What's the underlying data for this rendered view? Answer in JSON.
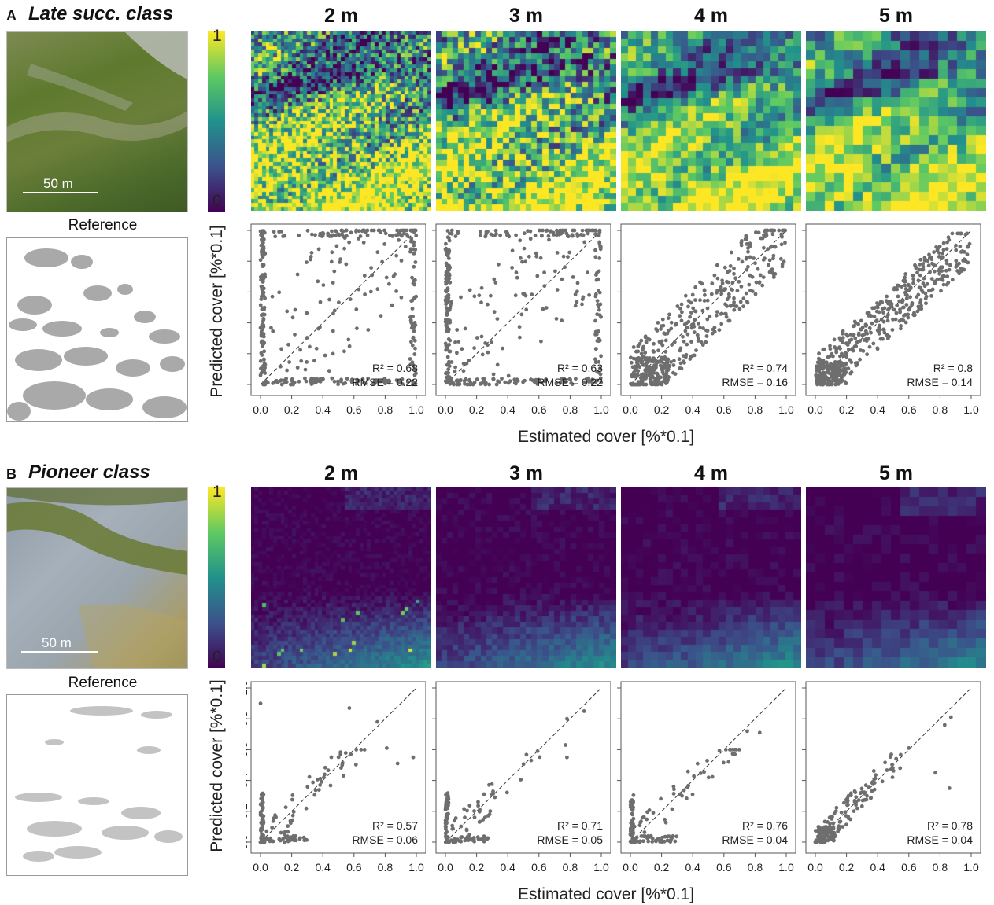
{
  "figure": {
    "panel_a": {
      "letter": "A",
      "class_title": "Late succ. class",
      "scale_label": "50 m",
      "reference_label": "Reference",
      "colorbar": {
        "max_label": "1",
        "min_label": "0"
      },
      "resolutions": [
        "2 m",
        "3 m",
        "4 m",
        "5 m"
      ],
      "ylabel": "Predicted cover [%*0.1]",
      "xlabel": "Estimated cover [%*0.1]"
    },
    "panel_b": {
      "letter": "B",
      "class_title": "Pioneer class",
      "scale_label": "50 m",
      "reference_label": "Reference",
      "colorbar": {
        "max_label": "1",
        "min_label": "0"
      },
      "resolutions": [
        "2 m",
        "3 m",
        "4 m",
        "5 m"
      ],
      "ylabel": "Predicted cover [%*0.1]",
      "xlabel": "Estimated cover [%*0.1]"
    },
    "colors": {
      "points": "#6e6e6e",
      "viridis_low": "#440154",
      "viridis_high": "#fde725",
      "reference_fill": "#a9a9a9"
    }
  },
  "chart_data": [
    {
      "panel": "A",
      "resolution": "2 m",
      "type": "scatter",
      "xlabel": "Estimated cover [%*0.1]",
      "ylabel": "Predicted cover [%*0.1]",
      "xlim": [
        0,
        1
      ],
      "ylim": [
        0,
        1
      ],
      "xticks": [
        "0.0",
        "0.2",
        "0.4",
        "0.6",
        "0.8",
        "1.0"
      ],
      "yticks": [],
      "annotation": {
        "r2_label": "R² = 0.68",
        "rmse_label": "RMSE = 0.22"
      },
      "reference_line": "1:1 dashed",
      "cluster": "spread",
      "seed": 11,
      "n_points": 420
    },
    {
      "panel": "A",
      "resolution": "3 m",
      "type": "scatter",
      "xlabel": "Estimated cover [%*0.1]",
      "ylabel": "Predicted cover [%*0.1]",
      "xlim": [
        0,
        1
      ],
      "ylim": [
        0,
        1
      ],
      "xticks": [
        "0.0",
        "0.2",
        "0.4",
        "0.6",
        "0.8",
        "1.0"
      ],
      "yticks": [],
      "annotation": {
        "r2_label": "R² = 0.63",
        "rmse_label": "RMSE = 0.22"
      },
      "reference_line": "1:1 dashed",
      "cluster": "spread",
      "seed": 23,
      "n_points": 420
    },
    {
      "panel": "A",
      "resolution": "4 m",
      "type": "scatter",
      "xlabel": "Estimated cover [%*0.1]",
      "ylabel": "Predicted cover [%*0.1]",
      "xlim": [
        0,
        1
      ],
      "ylim": [
        0,
        1
      ],
      "xticks": [
        "0.0",
        "0.2",
        "0.4",
        "0.6",
        "0.8",
        "1.0"
      ],
      "yticks": [],
      "annotation": {
        "r2_label": "R² = 0.74",
        "rmse_label": "RMSE = 0.16"
      },
      "reference_line": "1:1 dashed",
      "cluster": "diagonal",
      "seed": 37,
      "n_points": 480
    },
    {
      "panel": "A",
      "resolution": "5 m",
      "type": "scatter",
      "xlabel": "Estimated cover [%*0.1]",
      "ylabel": "Predicted cover [%*0.1]",
      "xlim": [
        0,
        1
      ],
      "ylim": [
        0,
        1
      ],
      "xticks": [
        "0.0",
        "0.2",
        "0.4",
        "0.6",
        "0.8",
        "1.0"
      ],
      "yticks": [],
      "annotation": {
        "r2_label": "R² = 0.8",
        "rmse_label": "RMSE = 0.14"
      },
      "reference_line": "1:1 dashed",
      "cluster": "tight",
      "seed": 53,
      "n_points": 520
    },
    {
      "panel": "B",
      "resolution": "2 m",
      "type": "scatter",
      "xlabel": "Estimated cover [%*0.1]",
      "ylabel": "Predicted cover [%*0.1]",
      "xlim": [
        0,
        1
      ],
      "ylim": [
        0,
        1
      ],
      "xticks": [
        "0.0",
        "0.2",
        "0.4",
        "0.6",
        "0.8",
        "1.0"
      ],
      "yticks": [
        "0.0",
        "0.2",
        "0.4",
        "0.6",
        "0.8",
        "1.0"
      ],
      "annotation": {
        "r2_label": "R² = 0.57",
        "rmse_label": "RMSE = 0.06"
      },
      "reference_line": "1:1 dashed",
      "cluster": "low",
      "seed": 71,
      "n_points": 160,
      "highlight_points": [
        [
          0.0,
          0.9
        ],
        [
          0.57,
          0.87
        ],
        [
          0.75,
          0.78
        ],
        [
          0.81,
          0.61
        ],
        [
          0.98,
          0.55
        ],
        [
          0.58,
          0.57
        ],
        [
          0.88,
          0.51
        ]
      ]
    },
    {
      "panel": "B",
      "resolution": "3 m",
      "type": "scatter",
      "xlabel": "Estimated cover [%*0.1]",
      "ylabel": "Predicted cover [%*0.1]",
      "xlim": [
        0,
        1
      ],
      "ylim": [
        0,
        1
      ],
      "xticks": [
        "0.0",
        "0.2",
        "0.4",
        "0.6",
        "0.8",
        "1.0"
      ],
      "yticks": [],
      "annotation": {
        "r2_label": "R² = 0.71",
        "rmse_label": "RMSE = 0.05"
      },
      "reference_line": "1:1 dashed",
      "cluster": "low",
      "seed": 89,
      "n_points": 140,
      "highlight_points": [
        [
          0.89,
          0.85
        ],
        [
          0.78,
          0.8
        ],
        [
          0.77,
          0.63
        ],
        [
          0.78,
          0.55
        ],
        [
          0.55,
          0.53
        ]
      ]
    },
    {
      "panel": "B",
      "resolution": "4 m",
      "type": "scatter",
      "xlabel": "Estimated cover [%*0.1]",
      "ylabel": "Predicted cover [%*0.1]",
      "xlim": [
        0,
        1
      ],
      "ylim": [
        0,
        1
      ],
      "xticks": [
        "0.0",
        "0.2",
        "0.4",
        "0.6",
        "0.8",
        "1.0"
      ],
      "yticks": [],
      "annotation": {
        "r2_label": "R² = 0.76",
        "rmse_label": "RMSE = 0.04"
      },
      "reference_line": "1:1 dashed",
      "cluster": "low",
      "seed": 97,
      "n_points": 140,
      "highlight_points": [
        [
          0.75,
          0.72
        ],
        [
          0.83,
          0.71
        ],
        [
          0.63,
          0.52
        ],
        [
          0.67,
          0.57
        ]
      ]
    },
    {
      "panel": "B",
      "resolution": "5 m",
      "type": "scatter",
      "xlabel": "Estimated cover [%*0.1]",
      "ylabel": "Predicted cover [%*0.1]",
      "xlim": [
        0,
        1
      ],
      "ylim": [
        0,
        1
      ],
      "xticks": [
        "0.0",
        "0.2",
        "0.4",
        "0.6",
        "0.8",
        "1.0"
      ],
      "yticks": [],
      "annotation": {
        "r2_label": "R² = 0.78",
        "rmse_label": "RMSE = 0.04"
      },
      "reference_line": "1:1 dashed",
      "cluster": "low_diag",
      "seed": 113,
      "n_points": 170,
      "highlight_points": [
        [
          0.87,
          0.81
        ],
        [
          0.83,
          0.76
        ],
        [
          0.77,
          0.45
        ],
        [
          0.86,
          0.35
        ],
        [
          0.6,
          0.61
        ]
      ]
    }
  ],
  "heatmaps": [
    {
      "panel": "A",
      "resolution": "2 m",
      "grid": [
        48,
        48
      ],
      "pattern": "late",
      "seed": 5
    },
    {
      "panel": "A",
      "resolution": "3 m",
      "grid": [
        32,
        32
      ],
      "pattern": "late",
      "seed": 6
    },
    {
      "panel": "A",
      "resolution": "4 m",
      "grid": [
        24,
        24
      ],
      "pattern": "late",
      "seed": 7
    },
    {
      "panel": "A",
      "resolution": "5 m",
      "grid": [
        19,
        19
      ],
      "pattern": "late",
      "seed": 8
    },
    {
      "panel": "B",
      "resolution": "2 m",
      "grid": [
        48,
        48
      ],
      "pattern": "pioneer",
      "seed": 9
    },
    {
      "panel": "B",
      "resolution": "3 m",
      "grid": [
        32,
        32
      ],
      "pattern": "pioneer",
      "seed": 10
    },
    {
      "panel": "B",
      "resolution": "4 m",
      "grid": [
        24,
        24
      ],
      "pattern": "pioneer",
      "seed": 11
    },
    {
      "panel": "B",
      "resolution": "5 m",
      "grid": [
        19,
        19
      ],
      "pattern": "pioneer",
      "seed": 12
    }
  ]
}
